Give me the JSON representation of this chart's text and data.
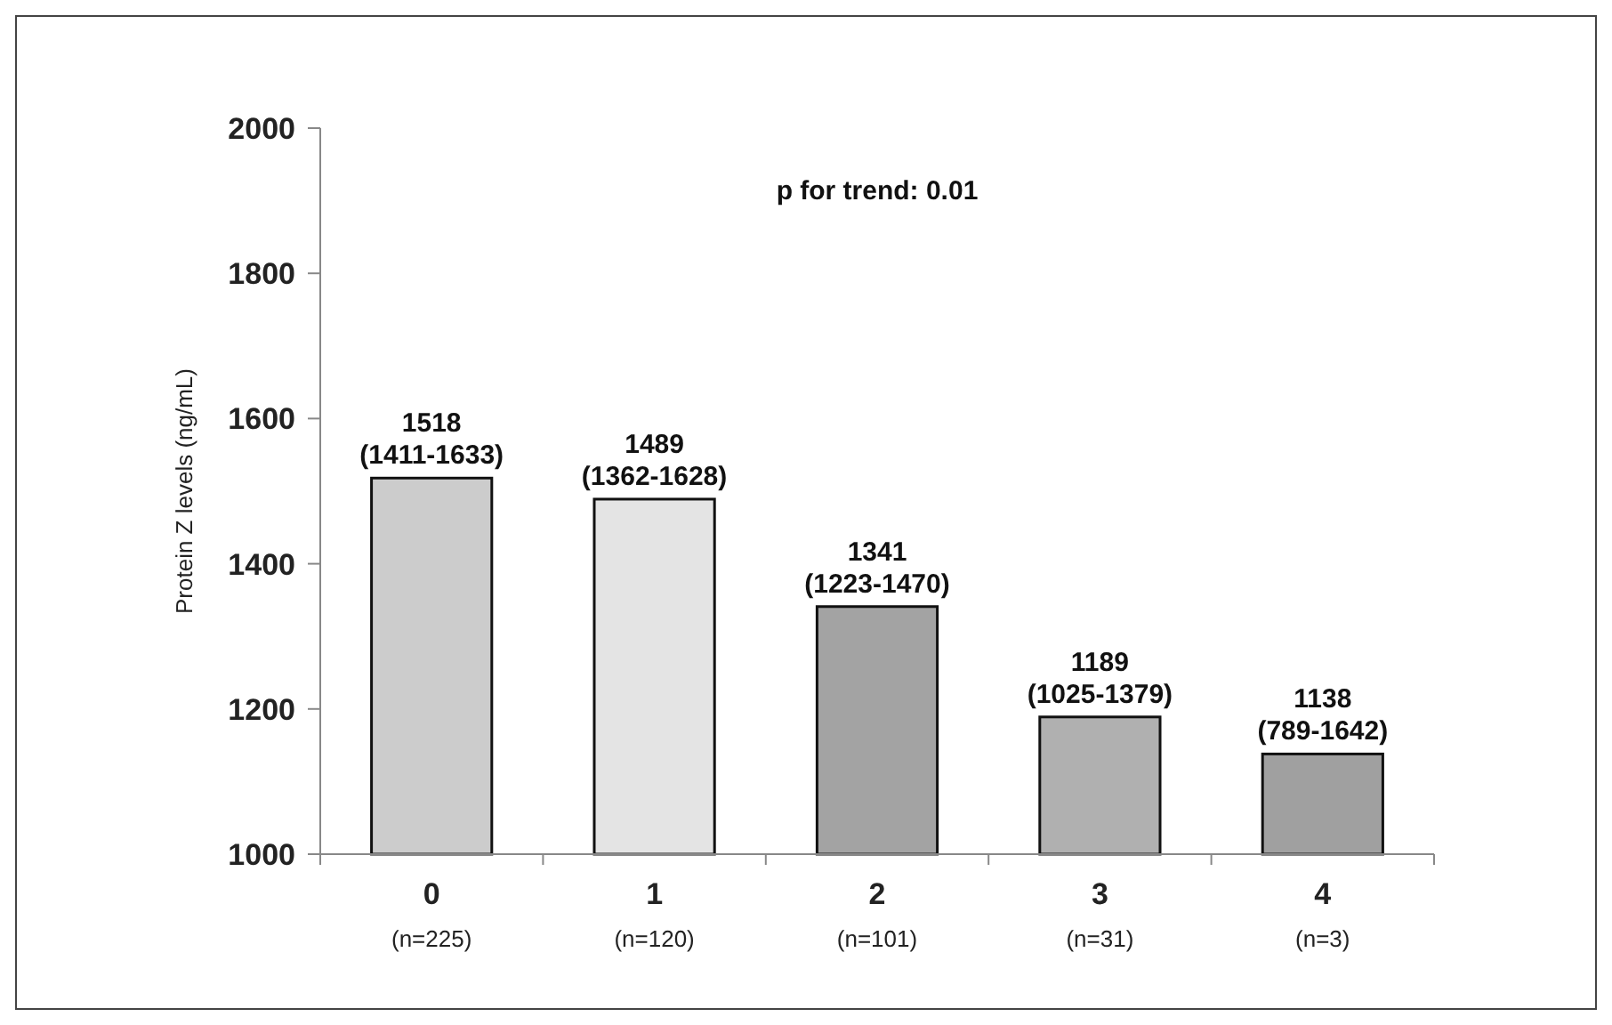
{
  "chart_data": {
    "type": "bar",
    "ylabel": "Protein Z levels (ng/mL)",
    "categories": [
      "0\n(n=225)",
      "1\n(n=120)",
      "2\n(n=101)",
      "3\n(n=31)",
      "4\n(n=3)"
    ],
    "values": [
      1518,
      1489,
      1341,
      1189,
      1138
    ],
    "colors": [
      "#cccccc",
      "#e4e4e4",
      "#a3a3a3",
      "#b0b0b0",
      "#a0a0a0"
    ],
    "value_labels": [
      "1518\n(1411-1633)",
      "1489\n(1362-1628)",
      "1341\n(1223-1470)",
      "1189\n(1025-1379)",
      "1138\n(789-1642)"
    ],
    "ylim": [
      1000,
      2000
    ],
    "yticks": [
      1000,
      1200,
      1400,
      1600,
      1800,
      2000
    ],
    "grid": false,
    "annotations": [
      "p for trend: 0.01"
    ]
  }
}
